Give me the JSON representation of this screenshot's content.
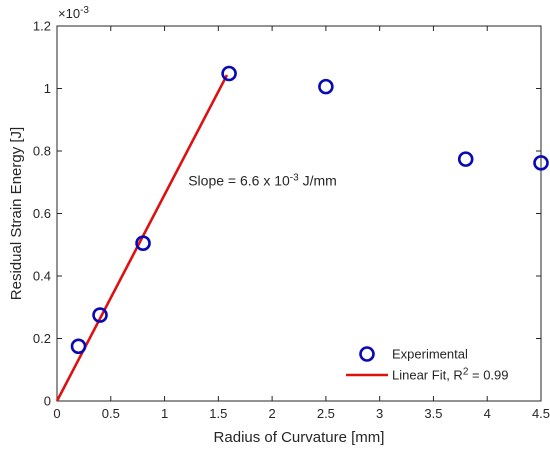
{
  "chart_data": {
    "type": "scatter",
    "xlabel": "Radius of Curvature [mm]",
    "ylabel": "Residual Strain Energy [J]",
    "y_exponent_label": {
      "base": "×10",
      "exp": "-3"
    },
    "xlim": [
      0,
      4.5
    ],
    "ylim": [
      0,
      1.2
    ],
    "x_ticks": [
      0,
      0.5,
      1,
      1.5,
      2,
      2.5,
      3,
      3.5,
      4,
      4.5
    ],
    "x_tick_labels": [
      "0",
      "0.5",
      "1",
      "1.5",
      "2",
      "2.5",
      "3",
      "3.5",
      "4",
      "4.5"
    ],
    "y_ticks": [
      0,
      0.2,
      0.4,
      0.6,
      0.8,
      1.0,
      1.2
    ],
    "y_tick_labels": [
      "0",
      "0.2",
      "0.4",
      "0.6",
      "0.8",
      "1",
      "1.2"
    ],
    "grid": false,
    "legend_position": "bottom-right",
    "series": [
      {
        "name": "Experimental",
        "kind": "scatter",
        "marker": "open-circle",
        "color": "#0a0ab4",
        "x": [
          0.2,
          0.4,
          0.8,
          1.6,
          2.5,
          3.8,
          4.5
        ],
        "y": [
          0.175,
          0.275,
          0.505,
          1.048,
          1.006,
          0.774,
          0.762
        ]
      },
      {
        "name": "Linear Fit, R² = 0.99",
        "kind": "line",
        "color": "#dd1111",
        "x": [
          0,
          1.58
        ],
        "y": [
          0,
          1.043
        ]
      }
    ],
    "annotation": {
      "prefix": "Slope = 6.6 x 10",
      "exp": "-3",
      "suffix": " J/mm",
      "x": 1.22,
      "y": 0.69
    },
    "legend": {
      "experimental": "Experimental",
      "fit_prefix": "Linear Fit, R",
      "fit_exp": "2",
      "fit_suffix": " = 0.99"
    }
  }
}
